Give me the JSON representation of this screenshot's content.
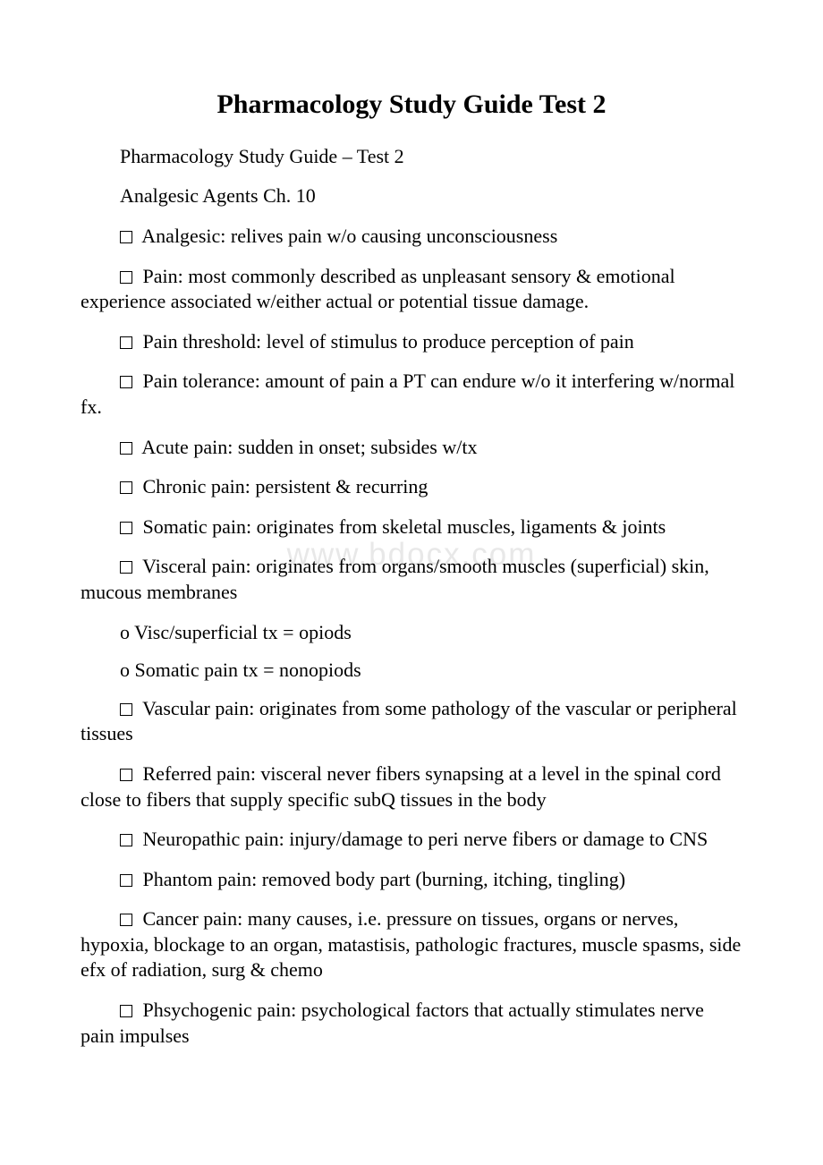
{
  "title": "Pharmacology Study Guide Test 2",
  "subtitle": "Pharmacology Study Guide – Test 2",
  "chapter": "Analgesic Agents Ch. 10",
  "watermark": "www.bdocx.com",
  "items": [
    {
      "text": "Analgesic: relives pain w/o causing unconsciousness"
    },
    {
      "text": "Pain: most commonly described as unpleasant sensory & emotional experience associated w/either actual or potential tissue damage."
    },
    {
      "text": "Pain threshold: level of stimulus to produce perception of pain"
    },
    {
      "text": "Pain tolerance: amount of pain a PT can endure w/o it interfering w/normal fx."
    },
    {
      "text": "Acute pain: sudden in onset; subsides w/tx"
    },
    {
      "text": "Chronic pain: persistent & recurring"
    },
    {
      "text": "Somatic pain: originates from skeletal muscles, ligaments & joints"
    },
    {
      "text": "Visceral pain: originates from organs/smooth muscles (superficial) skin, mucous membranes"
    }
  ],
  "subitems": [
    {
      "text": "o Visc/superficial tx = opiods"
    },
    {
      "text": "o Somatic pain tx = nonopiods"
    }
  ],
  "items2": [
    {
      "text": "Vascular pain: originates from some pathology of the vascular or peripheral tissues"
    },
    {
      "text": "Referred pain: visceral never fibers synapsing at a level in the spinal cord close to fibers that supply specific subQ tissues in the body"
    },
    {
      "text": "Neuropathic pain: injury/damage to peri nerve fibers or damage to CNS"
    },
    {
      "text": "Phantom pain: removed body part (burning, itching, tingling)"
    },
    {
      "text": "Cancer pain: many causes, i.e. pressure on tissues, organs or nerves, hypoxia, blockage to an organ, matastisis, pathologic fractures, muscle spasms, side efx of radiation, surg & chemo"
    },
    {
      "text": "Phsychogenic pain: psychological factors that actually stimulates nerve pain impulses"
    }
  ],
  "colors": {
    "text": "#000000",
    "background": "#ffffff",
    "watermark": "#e8e8e8"
  },
  "typography": {
    "title_fontsize": 30,
    "body_fontsize": 22,
    "font_family": "Times New Roman"
  }
}
